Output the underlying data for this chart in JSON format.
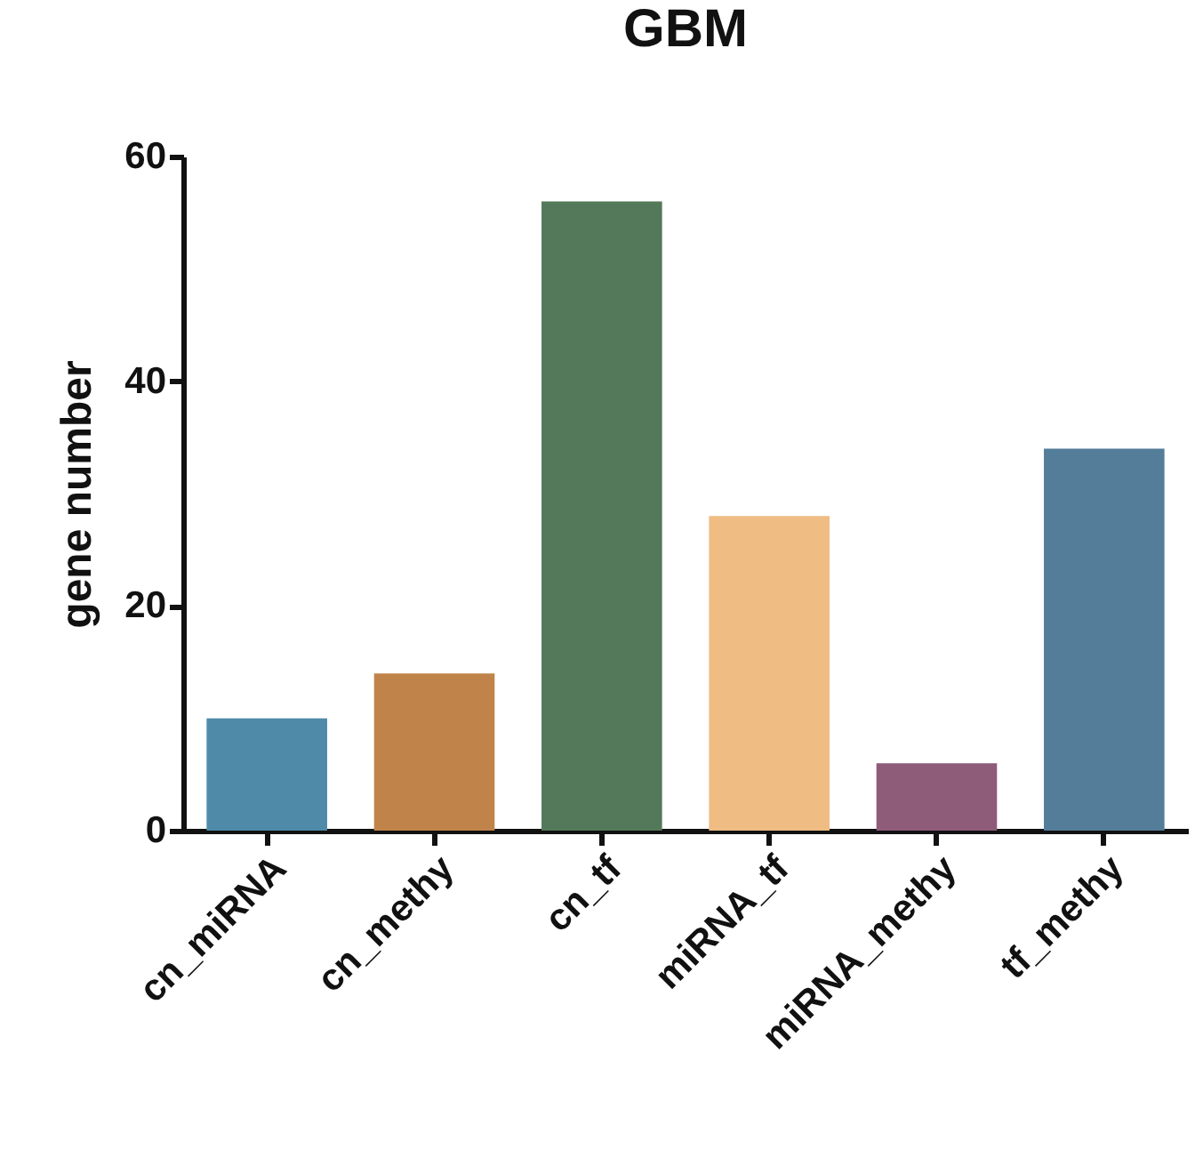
{
  "chart_data": {
    "type": "bar",
    "title": "GBM",
    "ylabel": "gene number",
    "categories": [
      "cn_miRNA",
      "cn_methy",
      "cn_tf",
      "miRNA_tf",
      "miRNA_methy",
      "tf_methy"
    ],
    "values": [
      10,
      14,
      56,
      28,
      6,
      34
    ],
    "colors": [
      "#4f8aa8",
      "#c0844a",
      "#54785a",
      "#efbc84",
      "#8e5b79",
      "#537d99"
    ],
    "ylim": [
      0,
      60
    ],
    "yticks": [
      0,
      20,
      40,
      60
    ],
    "grid": false,
    "legend": false
  }
}
